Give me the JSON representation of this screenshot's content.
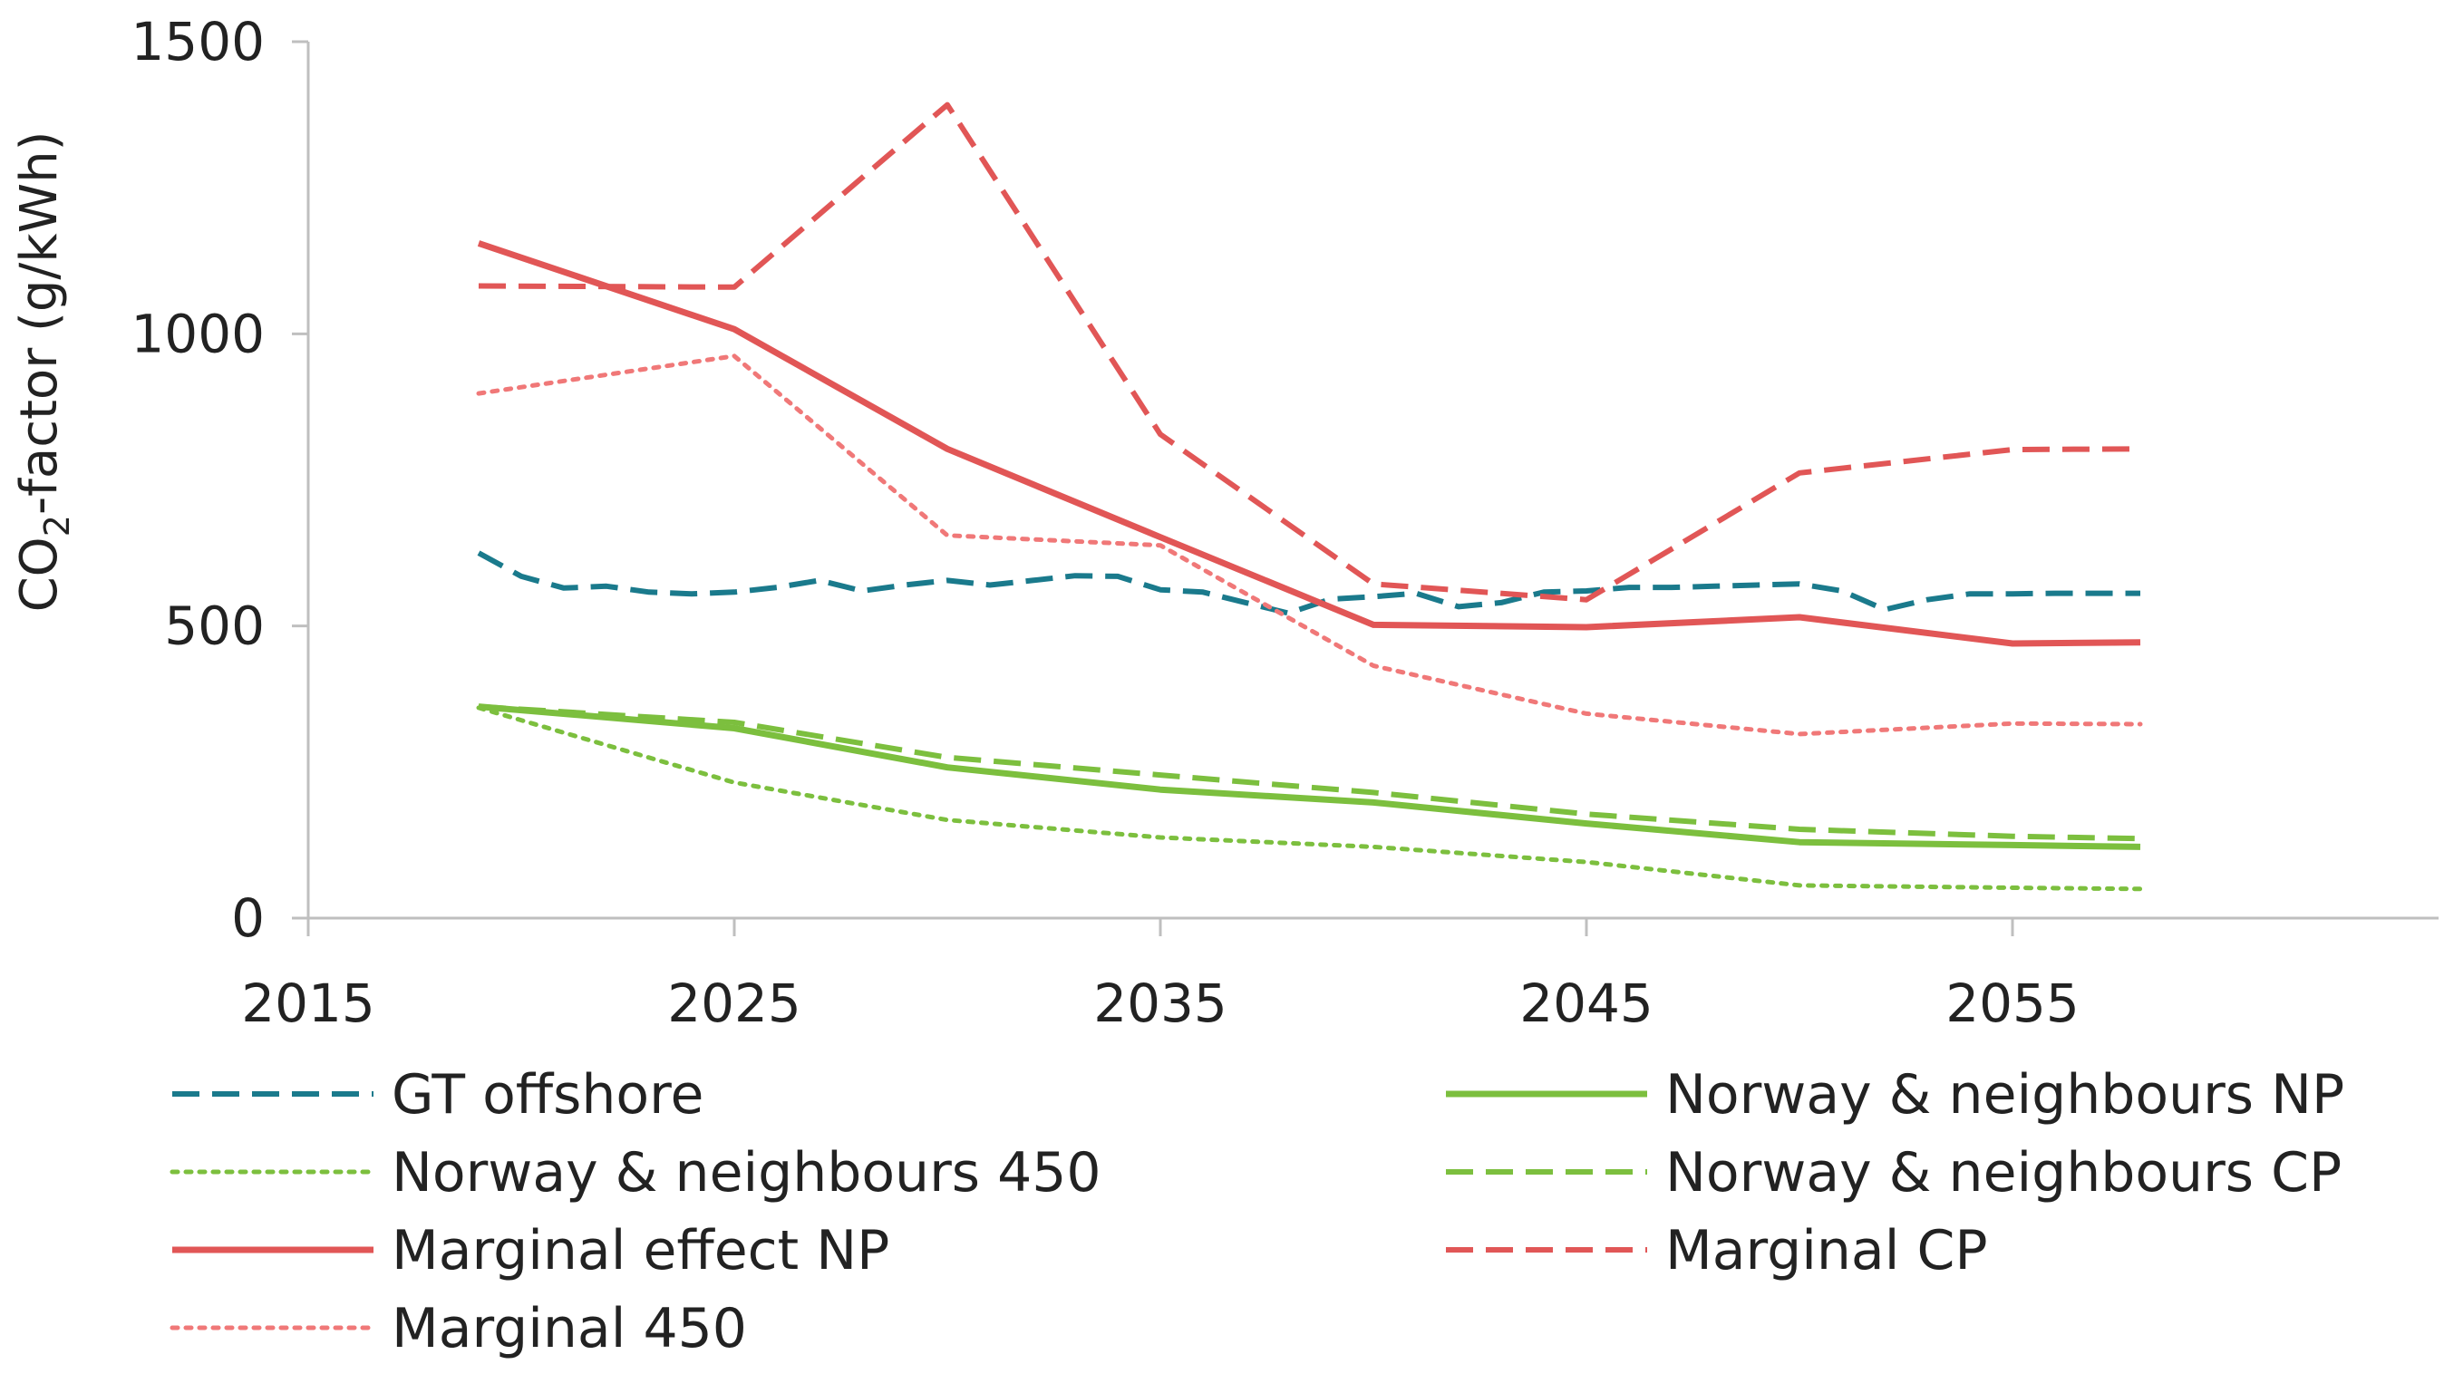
{
  "chart_data": {
    "type": "line",
    "title": "",
    "xlabel": "",
    "ylabel": "CO2-factor (g/kWh)",
    "ylabel_parts": {
      "prefix": "CO",
      "subscript": "2",
      "suffix": "-factor (g/kWh)"
    },
    "xlim": [
      2015,
      2065
    ],
    "ylim": [
      0,
      1500
    ],
    "xticks": [
      2015,
      2025,
      2035,
      2045,
      2055
    ],
    "yticks": [
      0,
      500,
      1000,
      1500
    ],
    "legend_position": "bottom",
    "series": [
      {
        "name": "GT offshore",
        "color": "#1a7a8c",
        "dash": "dash",
        "legend_col": 0,
        "legend_row": 0,
        "points": [
          [
            2019,
            625
          ],
          [
            2020,
            585
          ],
          [
            2021,
            565
          ],
          [
            2022,
            568
          ],
          [
            2023,
            558
          ],
          [
            2024,
            555
          ],
          [
            2025,
            558
          ],
          [
            2026,
            566
          ],
          [
            2027,
            578
          ],
          [
            2028,
            560
          ],
          [
            2029,
            570
          ],
          [
            2030,
            578
          ],
          [
            2031,
            570
          ],
          [
            2032,
            578
          ],
          [
            2033,
            586
          ],
          [
            2034,
            585
          ],
          [
            2035,
            562
          ],
          [
            2036,
            558
          ],
          [
            2037,
            540
          ],
          [
            2038,
            522
          ],
          [
            2039,
            546
          ],
          [
            2040,
            550
          ],
          [
            2041,
            556
          ],
          [
            2042,
            533
          ],
          [
            2043,
            540
          ],
          [
            2044,
            558
          ],
          [
            2045,
            560
          ],
          [
            2046,
            566
          ],
          [
            2047,
            566
          ],
          [
            2048,
            568
          ],
          [
            2049,
            570
          ],
          [
            2050,
            572
          ],
          [
            2051,
            560
          ],
          [
            2052,
            528
          ],
          [
            2053,
            545
          ],
          [
            2054,
            555
          ],
          [
            2055,
            555
          ],
          [
            2056,
            556
          ],
          [
            2057,
            556
          ],
          [
            2058,
            556
          ]
        ]
      },
      {
        "name": "Norway & neighbours NP",
        "color": "#7cbf3e",
        "dash": "solid",
        "legend_col": 1,
        "legend_row": 0,
        "points": [
          [
            2019,
            362
          ],
          [
            2025,
            325
          ],
          [
            2030,
            258
          ],
          [
            2035,
            220
          ],
          [
            2040,
            198
          ],
          [
            2045,
            162
          ],
          [
            2050,
            130
          ],
          [
            2055,
            125
          ],
          [
            2058,
            122
          ]
        ]
      },
      {
        "name": "Norway & neighbours 450",
        "color": "#7cbf3e",
        "dash": "dot",
        "legend_col": 0,
        "legend_row": 1,
        "points": [
          [
            2019,
            360
          ],
          [
            2025,
            232
          ],
          [
            2030,
            168
          ],
          [
            2035,
            138
          ],
          [
            2040,
            122
          ],
          [
            2045,
            96
          ],
          [
            2050,
            56
          ],
          [
            2055,
            52
          ],
          [
            2058,
            50
          ]
        ]
      },
      {
        "name": "Norway & neighbours CP",
        "color": "#7cbf3e",
        "dash": "dash",
        "legend_col": 1,
        "legend_row": 1,
        "points": [
          [
            2019,
            362
          ],
          [
            2025,
            335
          ],
          [
            2030,
            275
          ],
          [
            2035,
            245
          ],
          [
            2040,
            215
          ],
          [
            2045,
            178
          ],
          [
            2050,
            152
          ],
          [
            2055,
            140
          ],
          [
            2058,
            136
          ]
        ]
      },
      {
        "name": "Marginal effect NP",
        "color": "#e15656",
        "dash": "solid",
        "legend_col": 0,
        "legend_row": 2,
        "points": [
          [
            2019,
            1155
          ],
          [
            2025,
            1008
          ],
          [
            2030,
            803
          ],
          [
            2035,
            652
          ],
          [
            2040,
            502
          ],
          [
            2045,
            498
          ],
          [
            2050,
            515
          ],
          [
            2055,
            470
          ],
          [
            2058,
            472
          ]
        ]
      },
      {
        "name": "Marginal CP",
        "color": "#e15656",
        "dash": "dash",
        "legend_col": 1,
        "legend_row": 2,
        "points": [
          [
            2019,
            1082
          ],
          [
            2025,
            1080
          ],
          [
            2030,
            1392
          ],
          [
            2035,
            828
          ],
          [
            2040,
            572
          ],
          [
            2045,
            545
          ],
          [
            2050,
            762
          ],
          [
            2055,
            802
          ],
          [
            2058,
            803
          ]
        ]
      },
      {
        "name": "Marginal 450",
        "color": "#f07878",
        "dash": "dot",
        "legend_col": 0,
        "legend_row": 3,
        "points": [
          [
            2019,
            898
          ],
          [
            2025,
            962
          ],
          [
            2030,
            655
          ],
          [
            2035,
            638
          ],
          [
            2040,
            432
          ],
          [
            2045,
            350
          ],
          [
            2050,
            315
          ],
          [
            2055,
            333
          ],
          [
            2058,
            332
          ]
        ]
      }
    ]
  }
}
